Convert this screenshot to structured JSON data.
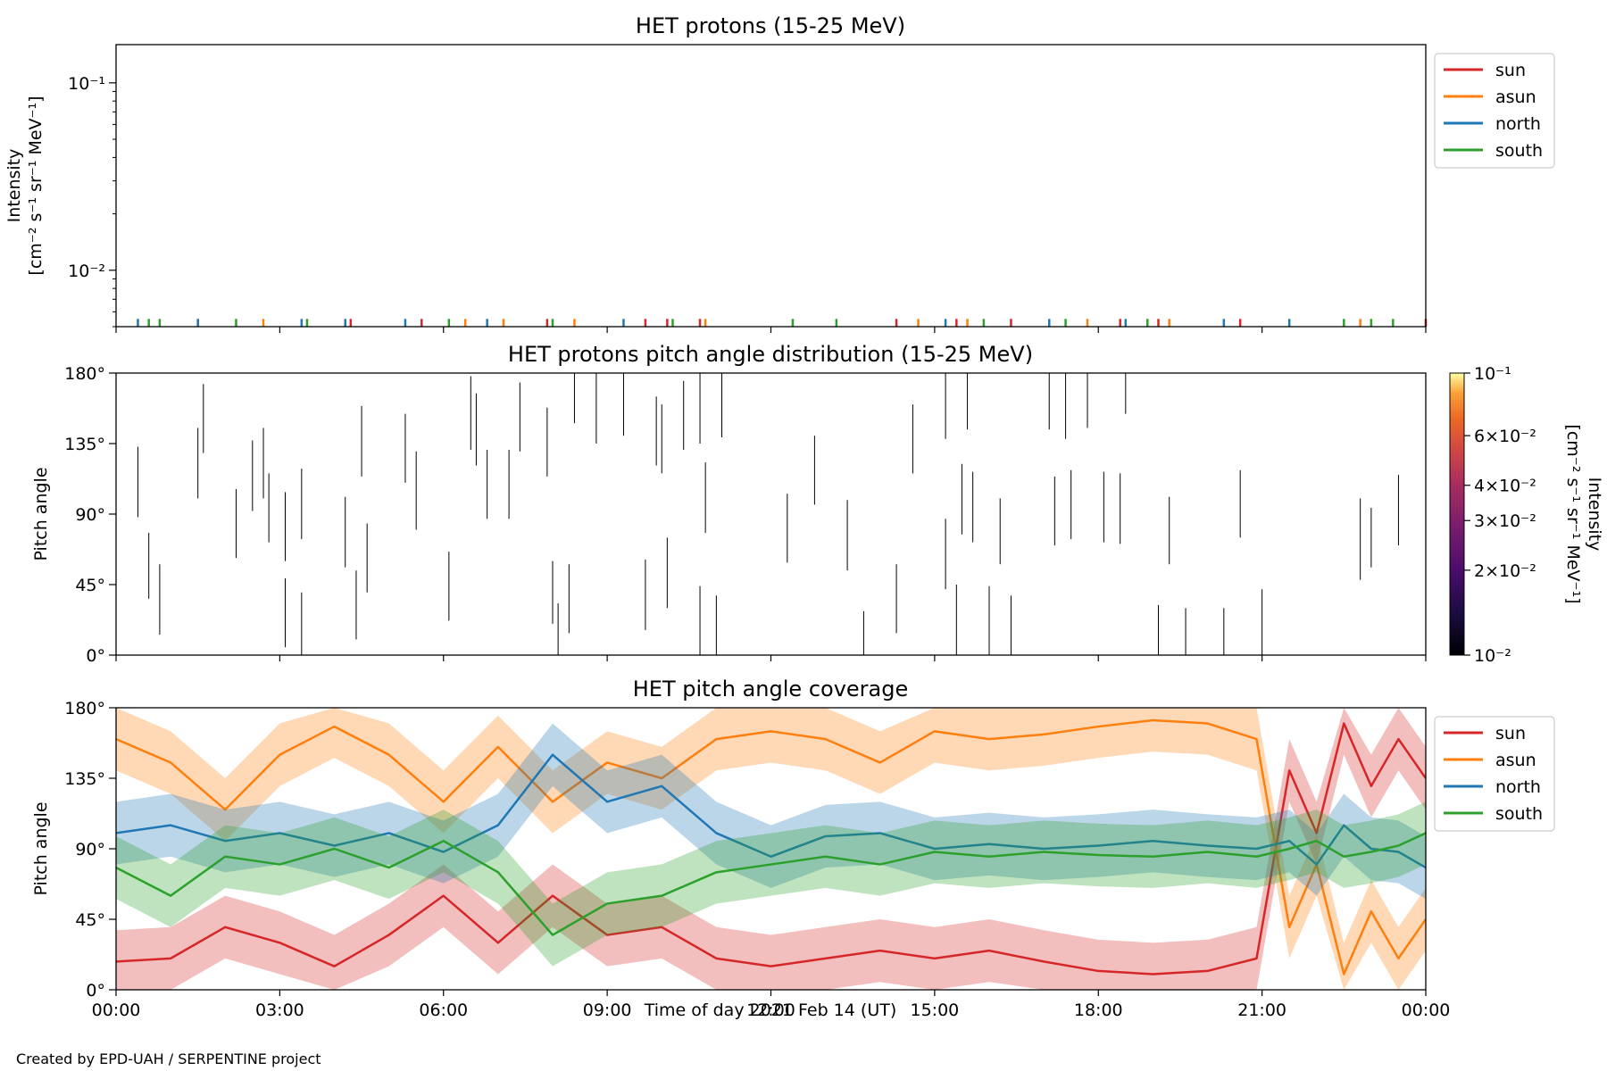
{
  "footer": {
    "credit": "Created by EPD-UAH / SERPENTINE project"
  },
  "colors": {
    "sun": "#d62728",
    "asun": "#ff7f0e",
    "north": "#1f77b4",
    "south": "#2ca02c"
  },
  "chart_data": [
    {
      "type": "line",
      "title": "HET protons (15-25 MeV)",
      "ylabel": "Intensity",
      "ylabel_units": "[cm⁻² s⁻¹ sr⁻¹ MeV⁻¹]",
      "yscale": "log",
      "ylim": [
        0.005,
        0.16
      ],
      "y_ticks": [
        {
          "value": 0.1,
          "label": "10⁻¹"
        },
        {
          "value": 0.01,
          "label": "10⁻²"
        }
      ],
      "legend": {
        "placement": "outside-right",
        "entries": [
          "sun",
          "asun",
          "north",
          "south"
        ]
      },
      "note": "Only sparse near-background spikes are visible at the bottom of the panel.",
      "series": [
        {
          "name": "sun",
          "x_hours": [
            4.3,
            5.6,
            7.9,
            9.7,
            10.1,
            10.7,
            14.3,
            15.4,
            16.4,
            18.4,
            19.1,
            20.6,
            24.0
          ],
          "y": [
            0.0055,
            0.0055,
            0.0055,
            0.0055,
            0.0055,
            0.0055,
            0.0055,
            0.0055,
            0.0055,
            0.0055,
            0.0055,
            0.0055,
            0.0055
          ]
        },
        {
          "name": "asun",
          "x_hours": [
            1.5,
            2.7,
            6.4,
            7.1,
            8.4,
            10.8,
            14.7,
            15.6,
            17.8,
            19.3,
            22.8
          ],
          "y": [
            0.0055,
            0.0055,
            0.0055,
            0.0055,
            0.0055,
            0.0055,
            0.0055,
            0.0055,
            0.0055,
            0.0055,
            0.0055
          ]
        },
        {
          "name": "north",
          "x_hours": [
            0.4,
            1.5,
            3.4,
            4.2,
            5.3,
            6.8,
            9.3,
            15.2,
            17.1,
            18.5,
            20.3,
            21.5
          ],
          "y": [
            0.0055,
            0.0055,
            0.0055,
            0.0055,
            0.0055,
            0.0055,
            0.0055,
            0.0055,
            0.0055,
            0.0055,
            0.0055,
            0.0055
          ]
        },
        {
          "name": "south",
          "x_hours": [
            0.6,
            0.8,
            2.2,
            3.5,
            6.1,
            8.0,
            10.2,
            12.4,
            13.2,
            15.9,
            17.4,
            18.9,
            22.5,
            23.0,
            23.4
          ],
          "y": [
            0.0055,
            0.0055,
            0.0055,
            0.0055,
            0.0055,
            0.0055,
            0.0055,
            0.0055,
            0.0055,
            0.0055,
            0.0055,
            0.0055,
            0.0055,
            0.0055,
            0.0055
          ]
        }
      ]
    },
    {
      "type": "heatmap",
      "title": "HET protons pitch angle distribution (15-25 MeV)",
      "ylabel": "Pitch angle",
      "ylim": [
        0,
        180
      ],
      "y_ticks": [
        "0°",
        "45°",
        "90°",
        "135°",
        "180°"
      ],
      "colorbar": {
        "label": "Intensity",
        "units": "[cm⁻² s⁻¹ sr⁻¹ MeV⁻¹]",
        "scale": "log",
        "range": [
          0.01,
          0.1
        ],
        "colormap": "inferno",
        "ticks": [
          {
            "value": 0.1,
            "label": "10⁻¹"
          },
          {
            "value": 0.06,
            "label": "6×10⁻²"
          },
          {
            "value": 0.04,
            "label": "4×10⁻²"
          },
          {
            "value": 0.03,
            "label": "3×10⁻²"
          },
          {
            "value": 0.02,
            "label": "2×10⁻²"
          },
          {
            "value": 0.01,
            "label": "10⁻²"
          }
        ]
      },
      "note": "Sparse thin vertical black segments indicate isolated pixels spanning pitch-angle ranges.",
      "segments": [
        {
          "x": 0.4,
          "y0": 88,
          "y1": 133
        },
        {
          "x": 0.6,
          "y0": 36,
          "y1": 78
        },
        {
          "x": 0.8,
          "y0": 13,
          "y1": 58
        },
        {
          "x": 1.5,
          "y0": 100,
          "y1": 145
        },
        {
          "x": 1.6,
          "y0": 129,
          "y1": 173
        },
        {
          "x": 2.2,
          "y0": 62,
          "y1": 106
        },
        {
          "x": 2.5,
          "y0": 92,
          "y1": 137
        },
        {
          "x": 2.7,
          "y0": 100,
          "y1": 145
        },
        {
          "x": 2.8,
          "y0": 72,
          "y1": 116
        },
        {
          "x": 3.1,
          "y0": 5,
          "y1": 49
        },
        {
          "x": 3.1,
          "y0": 60,
          "y1": 104
        },
        {
          "x": 3.4,
          "y0": 0,
          "y1": 40
        },
        {
          "x": 3.4,
          "y0": 74,
          "y1": 119
        },
        {
          "x": 4.2,
          "y0": 56,
          "y1": 101
        },
        {
          "x": 4.4,
          "y0": 10,
          "y1": 54
        },
        {
          "x": 4.5,
          "y0": 114,
          "y1": 159
        },
        {
          "x": 4.6,
          "y0": 40,
          "y1": 84
        },
        {
          "x": 5.3,
          "y0": 110,
          "y1": 154
        },
        {
          "x": 5.5,
          "y0": 80,
          "y1": 130
        },
        {
          "x": 6.1,
          "y0": 22,
          "y1": 66
        },
        {
          "x": 6.5,
          "y0": 131,
          "y1": 178
        },
        {
          "x": 6.6,
          "y0": 121,
          "y1": 167
        },
        {
          "x": 6.8,
          "y0": 87,
          "y1": 131
        },
        {
          "x": 7.2,
          "y0": 87,
          "y1": 131
        },
        {
          "x": 7.4,
          "y0": 130,
          "y1": 174
        },
        {
          "x": 7.9,
          "y0": 114,
          "y1": 158
        },
        {
          "x": 8.0,
          "y0": 20,
          "y1": 60
        },
        {
          "x": 8.1,
          "y0": 0,
          "y1": 33
        },
        {
          "x": 8.3,
          "y0": 14,
          "y1": 58
        },
        {
          "x": 8.4,
          "y0": 148,
          "y1": 180
        },
        {
          "x": 8.8,
          "y0": 135,
          "y1": 180
        },
        {
          "x": 9.3,
          "y0": 140,
          "y1": 180
        },
        {
          "x": 9.7,
          "y0": 16,
          "y1": 61
        },
        {
          "x": 9.9,
          "y0": 121,
          "y1": 165
        },
        {
          "x": 10.0,
          "y0": 116,
          "y1": 160
        },
        {
          "x": 10.1,
          "y0": 30,
          "y1": 75
        },
        {
          "x": 10.4,
          "y0": 131,
          "y1": 175
        },
        {
          "x": 10.7,
          "y0": 135,
          "y1": 180
        },
        {
          "x": 10.7,
          "y0": 0,
          "y1": 44
        },
        {
          "x": 10.8,
          "y0": 78,
          "y1": 123
        },
        {
          "x": 11.0,
          "y0": 0,
          "y1": 38
        },
        {
          "x": 11.1,
          "y0": 139,
          "y1": 180
        },
        {
          "x": 12.3,
          "y0": 59,
          "y1": 103
        },
        {
          "x": 12.8,
          "y0": 96,
          "y1": 140
        },
        {
          "x": 13.4,
          "y0": 54,
          "y1": 99
        },
        {
          "x": 13.7,
          "y0": 0,
          "y1": 28
        },
        {
          "x": 14.3,
          "y0": 14,
          "y1": 58
        },
        {
          "x": 14.6,
          "y0": 116,
          "y1": 160
        },
        {
          "x": 15.2,
          "y0": 42,
          "y1": 87
        },
        {
          "x": 15.2,
          "y0": 138,
          "y1": 180
        },
        {
          "x": 15.4,
          "y0": 0,
          "y1": 45
        },
        {
          "x": 15.5,
          "y0": 77,
          "y1": 122
        },
        {
          "x": 15.6,
          "y0": 144,
          "y1": 180
        },
        {
          "x": 15.7,
          "y0": 72,
          "y1": 117
        },
        {
          "x": 16.0,
          "y0": 0,
          "y1": 44
        },
        {
          "x": 16.2,
          "y0": 58,
          "y1": 100
        },
        {
          "x": 16.4,
          "y0": 0,
          "y1": 38
        },
        {
          "x": 17.1,
          "y0": 144,
          "y1": 180
        },
        {
          "x": 17.2,
          "y0": 70,
          "y1": 114
        },
        {
          "x": 17.4,
          "y0": 138,
          "y1": 180
        },
        {
          "x": 17.5,
          "y0": 74,
          "y1": 118
        },
        {
          "x": 17.8,
          "y0": 145,
          "y1": 180
        },
        {
          "x": 18.1,
          "y0": 72,
          "y1": 117
        },
        {
          "x": 18.4,
          "y0": 71,
          "y1": 116
        },
        {
          "x": 18.5,
          "y0": 154,
          "y1": 180
        },
        {
          "x": 19.1,
          "y0": 0,
          "y1": 32
        },
        {
          "x": 19.3,
          "y0": 58,
          "y1": 101
        },
        {
          "x": 19.6,
          "y0": 0,
          "y1": 30
        },
        {
          "x": 20.3,
          "y0": 0,
          "y1": 30
        },
        {
          "x": 20.6,
          "y0": 75,
          "y1": 118
        },
        {
          "x": 21.0,
          "y0": 0,
          "y1": 42
        },
        {
          "x": 22.8,
          "y0": 48,
          "y1": 100
        },
        {
          "x": 23.0,
          "y0": 56,
          "y1": 94
        },
        {
          "x": 23.5,
          "y0": 70,
          "y1": 115
        },
        {
          "x": 24.0,
          "y0": 55,
          "y1": 158
        }
      ]
    },
    {
      "type": "line",
      "title": "HET pitch angle coverage",
      "ylabel": "Pitch angle",
      "xlabel": "Time of day 2021 Feb 14 (UT)",
      "ylim": [
        0,
        180
      ],
      "y_ticks": [
        "0°",
        "45°",
        "90°",
        "135°",
        "180°"
      ],
      "x_ticks": [
        "00:00",
        "03:00",
        "06:00",
        "09:00",
        "12:00",
        "15:00",
        "18:00",
        "21:00",
        "00:00"
      ],
      "xlim_hours": [
        0,
        24
      ],
      "legend": {
        "placement": "outside-right",
        "entries": [
          "sun",
          "asun",
          "north",
          "south"
        ]
      },
      "band_halfwidth_deg": 20,
      "series": [
        {
          "name": "sun",
          "x_hours": [
            0,
            1,
            2,
            3,
            4,
            5,
            6,
            7,
            8,
            9,
            10,
            11,
            12,
            13,
            14,
            15,
            16,
            17,
            18,
            19,
            20,
            20.9,
            21.5,
            22,
            22.5,
            23,
            23.5,
            24
          ],
          "y": [
            18,
            20,
            40,
            30,
            15,
            35,
            60,
            30,
            60,
            35,
            40,
            20,
            15,
            20,
            25,
            20,
            25,
            18,
            12,
            10,
            12,
            20,
            140,
            100,
            170,
            130,
            160,
            135
          ]
        },
        {
          "name": "asun",
          "x_hours": [
            0,
            1,
            2,
            3,
            4,
            5,
            6,
            7,
            8,
            9,
            10,
            11,
            12,
            13,
            14,
            15,
            16,
            17,
            18,
            19,
            20,
            20.9,
            21.5,
            22,
            22.5,
            23,
            23.5,
            24
          ],
          "y": [
            160,
            145,
            115,
            150,
            168,
            150,
            120,
            155,
            120,
            145,
            135,
            160,
            165,
            160,
            145,
            165,
            160,
            163,
            168,
            172,
            170,
            160,
            40,
            80,
            10,
            50,
            20,
            45
          ]
        },
        {
          "name": "north",
          "x_hours": [
            0,
            1,
            2,
            3,
            4,
            5,
            6,
            7,
            8,
            9,
            10,
            11,
            12,
            13,
            14,
            15,
            16,
            17,
            18,
            19,
            20,
            20.9,
            21.5,
            22,
            22.5,
            23,
            23.5,
            24
          ],
          "y": [
            100,
            105,
            95,
            100,
            92,
            100,
            88,
            105,
            150,
            120,
            130,
            100,
            85,
            98,
            100,
            90,
            93,
            90,
            92,
            95,
            92,
            90,
            95,
            80,
            105,
            90,
            88,
            78
          ]
        },
        {
          "name": "south",
          "x_hours": [
            0,
            1,
            2,
            3,
            4,
            5,
            6,
            7,
            8,
            9,
            10,
            11,
            12,
            13,
            14,
            15,
            16,
            17,
            18,
            19,
            20,
            20.9,
            21.5,
            22,
            22.5,
            23,
            23.5,
            24
          ],
          "y": [
            78,
            60,
            85,
            80,
            90,
            78,
            95,
            75,
            35,
            55,
            60,
            75,
            80,
            85,
            80,
            88,
            85,
            88,
            86,
            85,
            88,
            85,
            90,
            95,
            85,
            88,
            92,
            100
          ]
        }
      ]
    }
  ]
}
